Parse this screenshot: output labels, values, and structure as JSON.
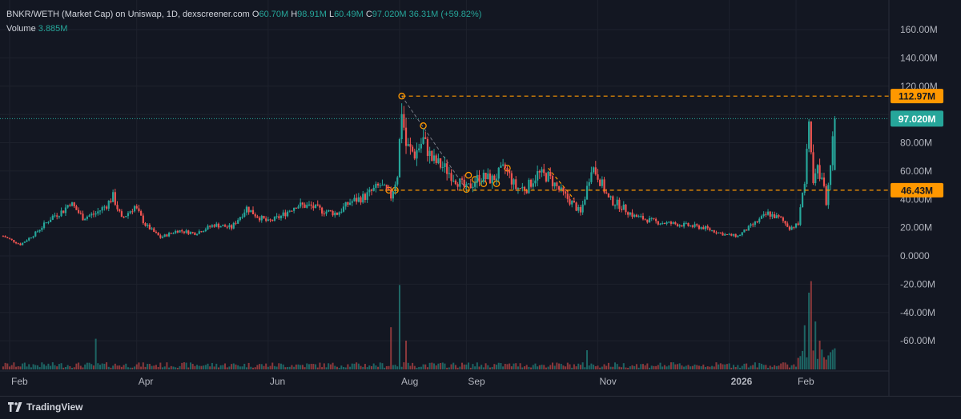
{
  "header": {
    "title": "BNKR/WETH (Market Cap) on Uniswap, 1D, dexscreener.com",
    "o_label": "O",
    "o_value": "60.70M",
    "h_label": "H",
    "h_value": "98.91M",
    "l_label": "L",
    "l_value": "60.49M",
    "c_label": "C",
    "c_value": "97.020M",
    "change": "36.31M (+59.82%)",
    "volume_label": "Volume",
    "volume_value": "3.885M"
  },
  "footer": {
    "brand": "TradingView"
  },
  "colors": {
    "up": "#26a69a",
    "down": "#ef5350",
    "bg": "#131722",
    "grid": "#1e222d",
    "level": "#ff9800",
    "last": "#26a69a"
  },
  "chart_data": {
    "type": "candlestick",
    "title": "BNKR/WETH (Market Cap) on Uniswap, 1D, dexscreener.com",
    "y_unit": "M",
    "ylim": [
      -75,
      170
    ],
    "y_ticks": [
      "160.00M",
      "140.00M",
      "120.00M",
      "100.00M",
      "80.00M",
      "60.00M",
      "40.00M",
      "20.00M",
      "0.0000",
      "-20.00M",
      "-40.00M",
      "-60.00M"
    ],
    "y_tick_values": [
      160,
      140,
      120,
      100,
      80,
      60,
      40,
      20,
      0,
      -20,
      -40,
      -60
    ],
    "x_ticks": [
      "Feb",
      "Apr",
      "Jun",
      "Aug",
      "Sep",
      "Nov",
      "2026",
      "Feb"
    ],
    "x_tick_day_offsets": [
      0,
      59,
      120,
      181,
      212,
      273,
      334,
      365
    ],
    "x_range_days": [
      -3,
      410
    ],
    "close_anchors": [
      {
        "day": -3,
        "v": 14
      },
      {
        "day": 5,
        "v": 8
      },
      {
        "day": 12,
        "v": 16
      },
      {
        "day": 20,
        "v": 28
      },
      {
        "day": 25,
        "v": 32
      },
      {
        "day": 28,
        "v": 38
      },
      {
        "day": 34,
        "v": 27
      },
      {
        "day": 40,
        "v": 30
      },
      {
        "day": 45,
        "v": 36
      },
      {
        "day": 48,
        "v": 42
      },
      {
        "day": 52,
        "v": 26
      },
      {
        "day": 58,
        "v": 35
      },
      {
        "day": 63,
        "v": 22
      },
      {
        "day": 70,
        "v": 13
      },
      {
        "day": 78,
        "v": 18
      },
      {
        "day": 86,
        "v": 16
      },
      {
        "day": 95,
        "v": 22
      },
      {
        "day": 103,
        "v": 20
      },
      {
        "day": 110,
        "v": 34
      },
      {
        "day": 115,
        "v": 28
      },
      {
        "day": 120,
        "v": 24
      },
      {
        "day": 126,
        "v": 28
      },
      {
        "day": 133,
        "v": 36
      },
      {
        "day": 140,
        "v": 35
      },
      {
        "day": 145,
        "v": 32
      },
      {
        "day": 152,
        "v": 30
      },
      {
        "day": 158,
        "v": 38
      },
      {
        "day": 165,
        "v": 42
      },
      {
        "day": 172,
        "v": 50
      },
      {
        "day": 177,
        "v": 42
      },
      {
        "day": 180,
        "v": 58
      },
      {
        "day": 182,
        "v": 104
      },
      {
        "day": 184,
        "v": 78
      },
      {
        "day": 188,
        "v": 72
      },
      {
        "day": 192,
        "v": 82
      },
      {
        "day": 196,
        "v": 68
      },
      {
        "day": 202,
        "v": 62
      },
      {
        "day": 206,
        "v": 56
      },
      {
        "day": 212,
        "v": 47
      },
      {
        "day": 218,
        "v": 56
      },
      {
        "day": 224,
        "v": 54
      },
      {
        "day": 230,
        "v": 62
      },
      {
        "day": 235,
        "v": 48
      },
      {
        "day": 240,
        "v": 48
      },
      {
        "day": 245,
        "v": 58
      },
      {
        "day": 250,
        "v": 56
      },
      {
        "day": 256,
        "v": 45
      },
      {
        "day": 262,
        "v": 36
      },
      {
        "day": 265,
        "v": 30
      },
      {
        "day": 268,
        "v": 48
      },
      {
        "day": 270,
        "v": 64
      },
      {
        "day": 273,
        "v": 57
      },
      {
        "day": 278,
        "v": 40
      },
      {
        "day": 283,
        "v": 36
      },
      {
        "day": 290,
        "v": 28
      },
      {
        "day": 300,
        "v": 24
      },
      {
        "day": 312,
        "v": 22
      },
      {
        "day": 322,
        "v": 20
      },
      {
        "day": 332,
        "v": 15
      },
      {
        "day": 338,
        "v": 14
      },
      {
        "day": 345,
        "v": 22
      },
      {
        "day": 352,
        "v": 30
      },
      {
        "day": 358,
        "v": 26
      },
      {
        "day": 362,
        "v": 20
      },
      {
        "day": 366,
        "v": 22
      },
      {
        "day": 369,
        "v": 55
      },
      {
        "day": 371,
        "v": 88
      },
      {
        "day": 373,
        "v": 50
      },
      {
        "day": 375,
        "v": 60
      },
      {
        "day": 377,
        "v": 56
      },
      {
        "day": 379,
        "v": 38
      },
      {
        "day": 381,
        "v": 60
      },
      {
        "day": 383,
        "v": 97
      }
    ],
    "volume_spikes": [
      {
        "day": 40,
        "v": 16
      },
      {
        "day": 177,
        "v": 22
      },
      {
        "day": 181,
        "v": 44
      },
      {
        "day": 184,
        "v": 15
      },
      {
        "day": 268,
        "v": 10
      },
      {
        "day": 369,
        "v": 23
      },
      {
        "day": 371,
        "v": 40
      },
      {
        "day": 372,
        "v": 46
      },
      {
        "day": 374,
        "v": 25
      },
      {
        "day": 376,
        "v": 15
      },
      {
        "day": 383,
        "v": 11
      }
    ],
    "volume_scale_label": "volume bars drawn along bottom pane",
    "levels": [
      {
        "value": 112.97,
        "label": "112.97M",
        "style": "dashed",
        "color": "#ff9800"
      },
      {
        "value": 46.43,
        "label": "46.43M",
        "style": "dashed",
        "color": "#ff9800"
      }
    ],
    "last_price": {
      "value": 97.02,
      "label": "97.020M",
      "color": "#26a69a"
    },
    "drawing_markers": [
      {
        "day": 182,
        "v": 112.97
      },
      {
        "day": 192,
        "v": 92
      },
      {
        "day": 212,
        "v": 47
      },
      {
        "day": 176,
        "v": 46.43
      },
      {
        "day": 179,
        "v": 46.43
      },
      {
        "day": 213,
        "v": 57
      },
      {
        "day": 216,
        "v": 54
      },
      {
        "day": 220,
        "v": 51
      },
      {
        "day": 226,
        "v": 51
      },
      {
        "day": 231,
        "v": 62
      }
    ],
    "grid": true,
    "legend_position": "top-left"
  }
}
